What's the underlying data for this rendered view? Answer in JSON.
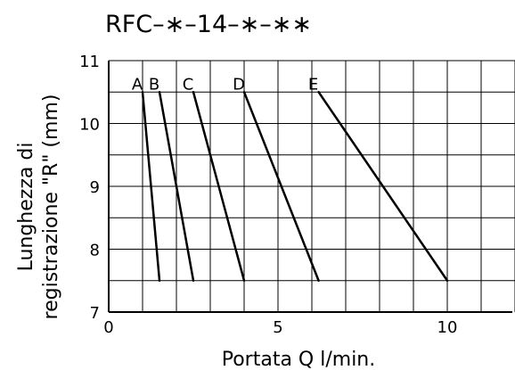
{
  "chart_data": {
    "type": "line",
    "title": "RFC–∗–14–∗–∗∗",
    "xlabel": "Portata Q l/min.",
    "ylabel_line1": "Lunghezza di",
    "ylabel_line2": "registrazione \"R\" (mm)",
    "xlim": [
      0,
      12
    ],
    "ylim": [
      7,
      11
    ],
    "x_ticks": [
      0,
      5,
      10
    ],
    "x_tick_labels": [
      "0",
      "5",
      "10"
    ],
    "y_ticks": [
      7,
      8,
      9,
      10,
      11
    ],
    "y_tick_labels": [
      "7",
      "8",
      "9",
      "10",
      "11"
    ],
    "x_grid_step": 1,
    "y_grid_step": 0.5,
    "grid": true,
    "legend": "none",
    "series": [
      {
        "name": "A",
        "points": [
          [
            1.0,
            10.5
          ],
          [
            1.5,
            7.5
          ]
        ]
      },
      {
        "name": "B",
        "points": [
          [
            1.5,
            10.5
          ],
          [
            2.5,
            7.5
          ]
        ]
      },
      {
        "name": "C",
        "points": [
          [
            2.5,
            10.5
          ],
          [
            4.0,
            7.5
          ]
        ]
      },
      {
        "name": "D",
        "points": [
          [
            4.0,
            10.5
          ],
          [
            6.2,
            7.5
          ]
        ]
      },
      {
        "name": "E",
        "points": [
          [
            6.2,
            10.5
          ],
          [
            10.0,
            7.5
          ]
        ]
      }
    ]
  }
}
